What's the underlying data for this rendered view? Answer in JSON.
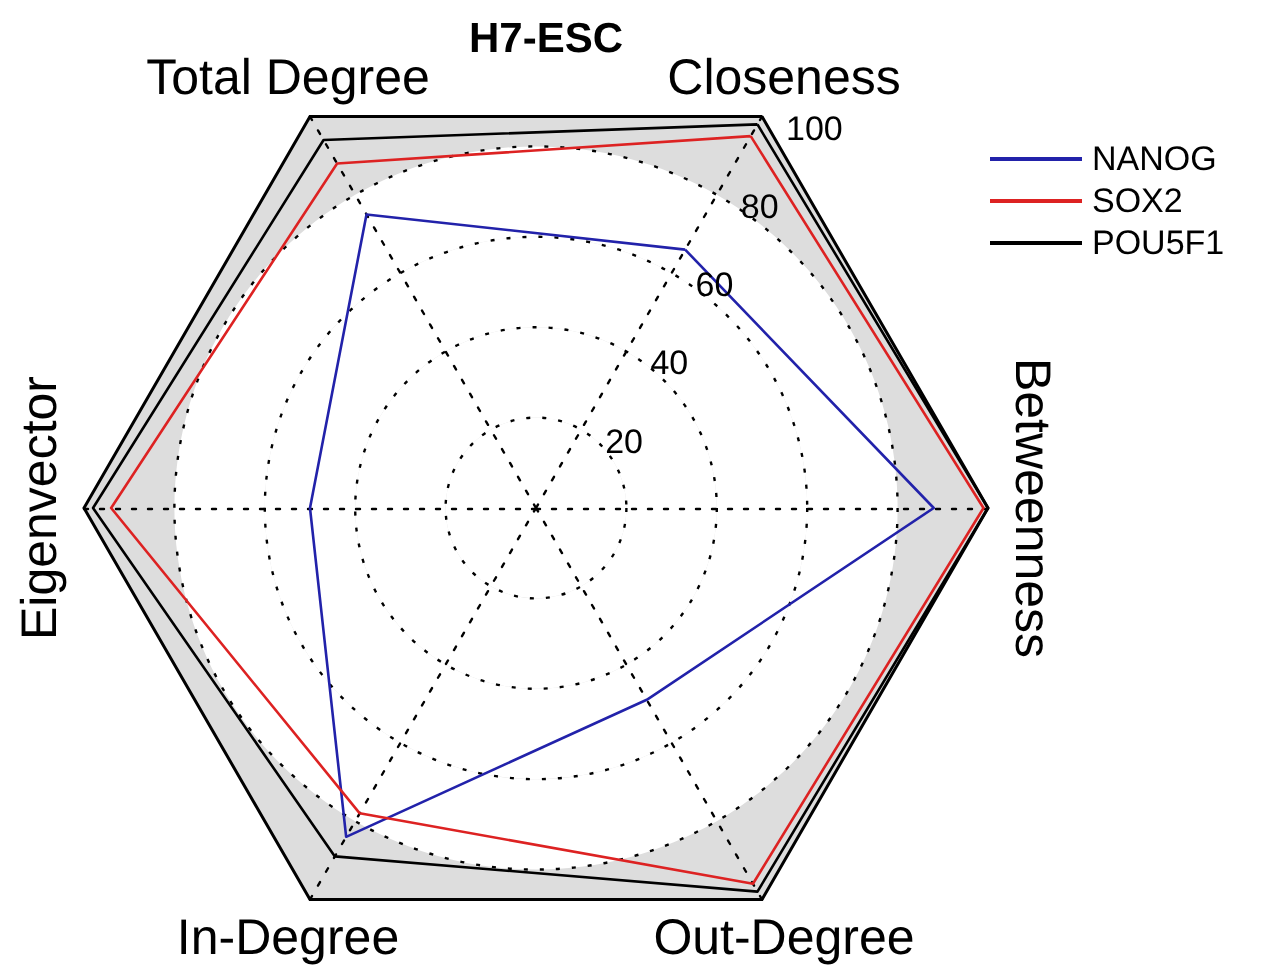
{
  "chart_data": {
    "type": "radar",
    "title": "H7-ESC",
    "categories": [
      "Closeness",
      "Betweenness",
      "Out-Degree",
      "In-Degree",
      "Eigenvector",
      "Total Degree"
    ],
    "series": [
      {
        "name": "NANOG",
        "color": "#2222aa",
        "values": [
          66,
          88,
          49,
          84,
          50,
          75
        ]
      },
      {
        "name": "SOX2",
        "color": "#dd2222",
        "values": [
          95,
          99,
          96,
          78,
          94,
          88
        ]
      },
      {
        "name": "POU5F1",
        "color": "#000000",
        "values": [
          98,
          100,
          98,
          89,
          98,
          94
        ]
      }
    ],
    "ylim": [
      0,
      100
    ],
    "yticks": [
      20,
      40,
      60,
      80,
      100
    ],
    "grid": true,
    "legend": "top right",
    "marker": "none",
    "line_style": "solid"
  }
}
